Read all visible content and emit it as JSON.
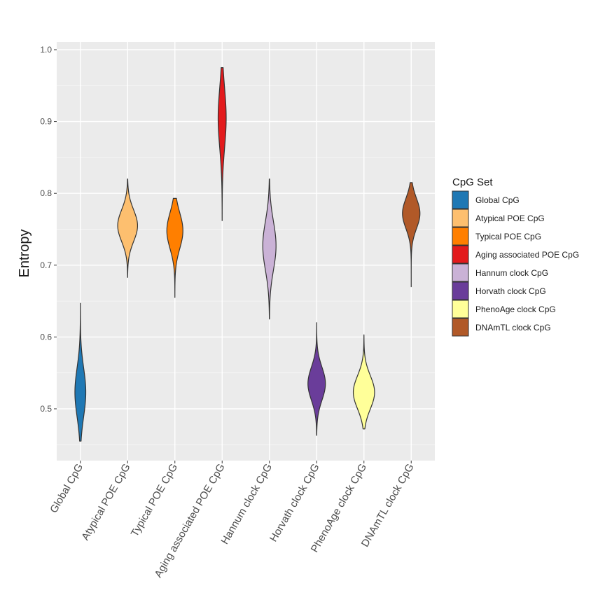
{
  "chart_data": {
    "type": "violin",
    "title": "",
    "xlabel": "",
    "ylabel": "Entropy",
    "ylim": [
      0.43,
      1.0
    ],
    "yticks": [
      0.5,
      0.6,
      0.7,
      0.8,
      0.9,
      1.0
    ],
    "ytick_labels": [
      "0.5",
      "0.6",
      "0.7",
      "0.8",
      "0.9",
      "1.0"
    ],
    "grid": true,
    "legend": {
      "title": "CpG Set",
      "position": "right"
    },
    "categories": [
      "Global CpG",
      "Atypical POE CpG",
      "Typical POE CpG",
      "Aging associated POE CpG",
      "Hannum clock CpG",
      "Horvath clock CpG",
      "PhenoAge clock CpG",
      "DNAmTL clock CpG"
    ],
    "series": [
      {
        "name": "Global CpG",
        "color": "#1f78b4",
        "min": 0.455,
        "max": 0.647,
        "median": 0.523,
        "spread": 0.034,
        "max_halfwidth_frac": 0.23
      },
      {
        "name": "Atypical POE CpG",
        "color": "#fdbf6f",
        "min": 0.683,
        "max": 0.82,
        "median": 0.755,
        "spread": 0.022,
        "max_halfwidth_frac": 0.42
      },
      {
        "name": "Typical POE CpG",
        "color": "#ff7f00",
        "min": 0.655,
        "max": 0.793,
        "median": 0.748,
        "spread": 0.025,
        "max_halfwidth_frac": 0.34
      },
      {
        "name": "Aging associated POE CpG",
        "color": "#e31a1c",
        "min": 0.762,
        "max": 0.975,
        "median": 0.905,
        "spread": 0.042,
        "max_halfwidth_frac": 0.17
      },
      {
        "name": "Hannum clock CpG",
        "color": "#cab2d6",
        "min": 0.625,
        "max": 0.82,
        "median": 0.727,
        "spread": 0.034,
        "max_halfwidth_frac": 0.28
      },
      {
        "name": "Horvath clock CpG",
        "color": "#6a3d9a",
        "min": 0.463,
        "max": 0.62,
        "median": 0.535,
        "spread": 0.023,
        "max_halfwidth_frac": 0.37
      },
      {
        "name": "PhenoAge clock CpG",
        "color": "#ffff99",
        "min": 0.472,
        "max": 0.603,
        "median": 0.523,
        "spread": 0.023,
        "max_halfwidth_frac": 0.45
      },
      {
        "name": "DNAmTL clock CpG",
        "color": "#b15928",
        "min": 0.67,
        "max": 0.815,
        "median": 0.772,
        "spread": 0.021,
        "max_halfwidth_frac": 0.37
      }
    ]
  }
}
